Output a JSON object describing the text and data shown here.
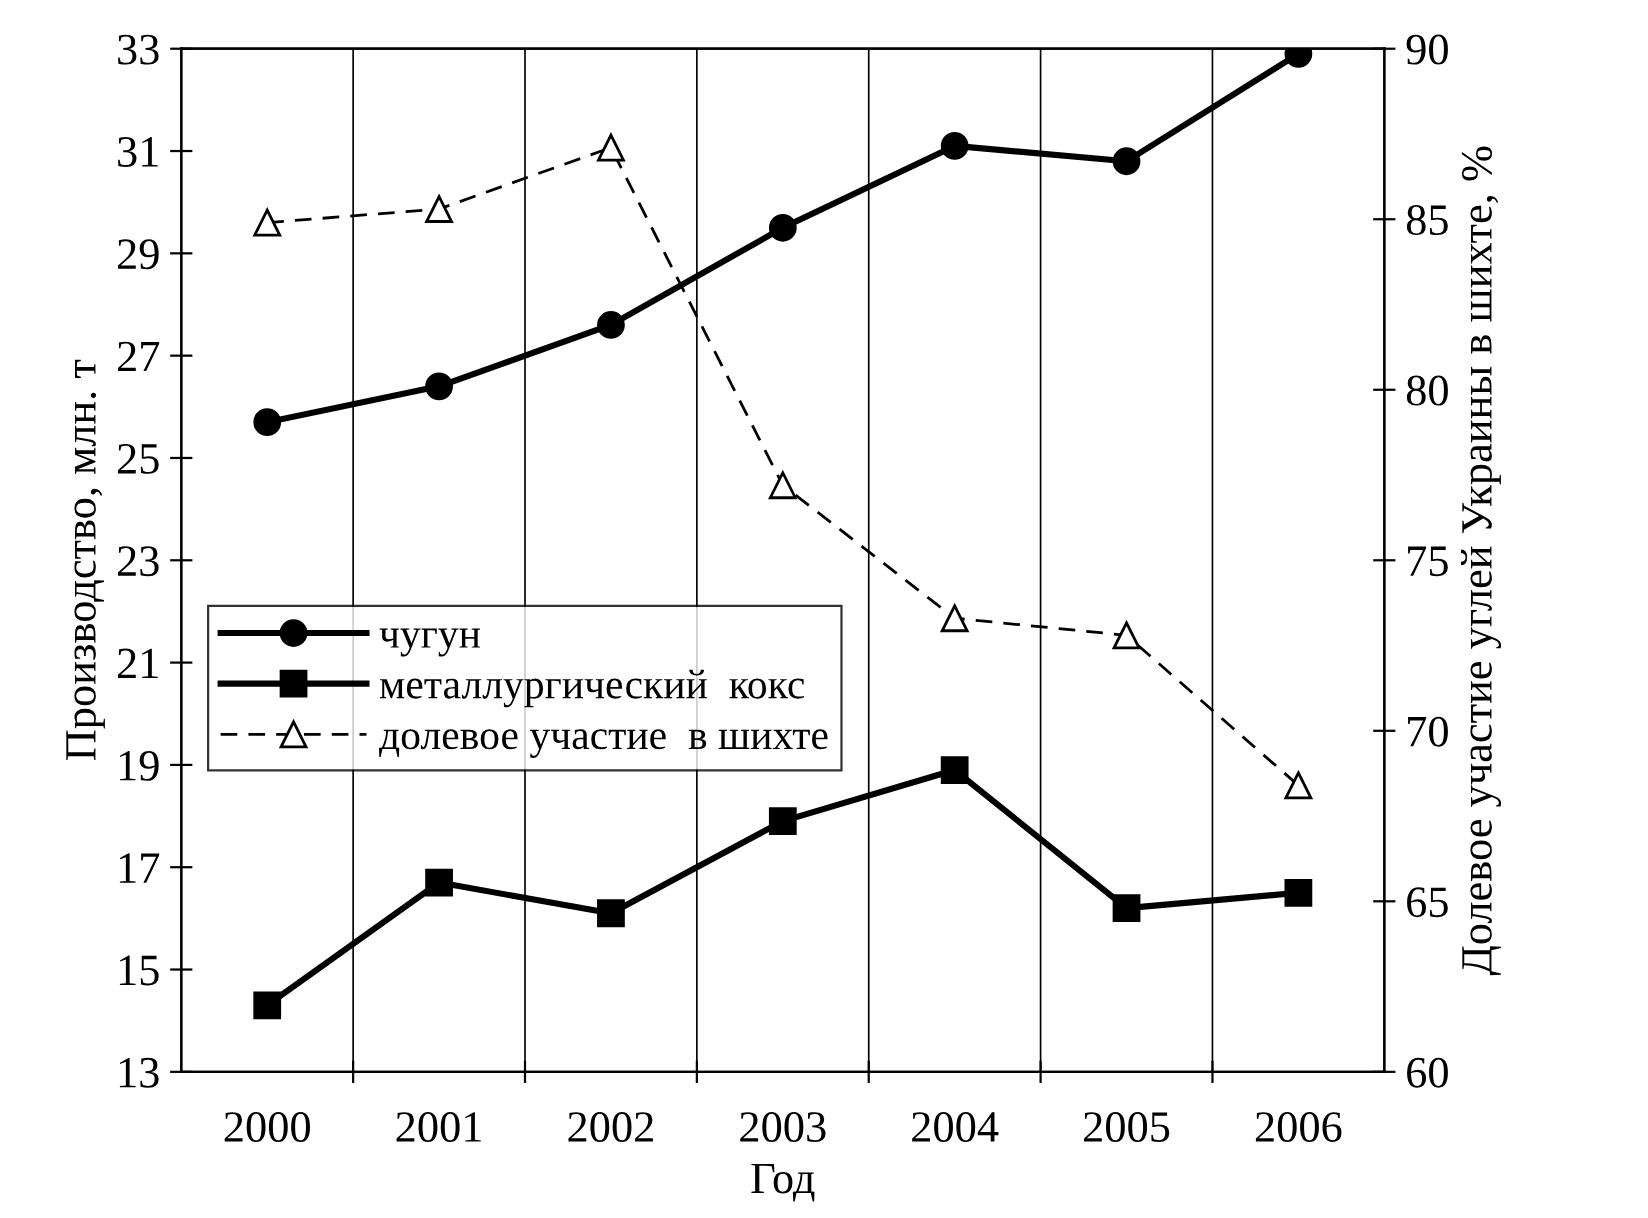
{
  "chart_data": {
    "type": "line",
    "xlabel": "Год",
    "ylabel": "Производство, млн. т",
    "y2label": "Долевое участие углей Украины в шихте, %",
    "categories": [
      "2000",
      "2001",
      "2002",
      "2003",
      "2004",
      "2005",
      "2006"
    ],
    "ylim": [
      13,
      33
    ],
    "yticks": [
      13,
      15,
      17,
      19,
      21,
      23,
      25,
      27,
      29,
      31,
      33
    ],
    "y2lim": [
      60,
      90
    ],
    "y2ticks": [
      60,
      65,
      70,
      75,
      80,
      85,
      90
    ],
    "grid": "x",
    "legend": "left",
    "series": [
      {
        "name": "чугун",
        "color": "#000000",
        "marker": "circle",
        "line_style": "solid",
        "values": [
          25.7,
          26.4,
          27.6,
          29.5,
          31.1,
          30.8,
          32.9
        ]
      },
      {
        "name": "металлургический  кокс",
        "color": "#000000",
        "marker": "square",
        "line_style": "solid",
        "values": [
          14.3,
          16.7,
          16.1,
          17.9,
          18.9,
          16.2,
          16.5
        ]
      },
      {
        "name": "долевое участие  в шихте",
        "color": "#000000",
        "marker": "triangle",
        "line_style": "dashed",
        "axis": "y2",
        "values": [
          84.9,
          85.3,
          87.1,
          77.2,
          73.3,
          72.8,
          68.4
        ]
      }
    ]
  }
}
